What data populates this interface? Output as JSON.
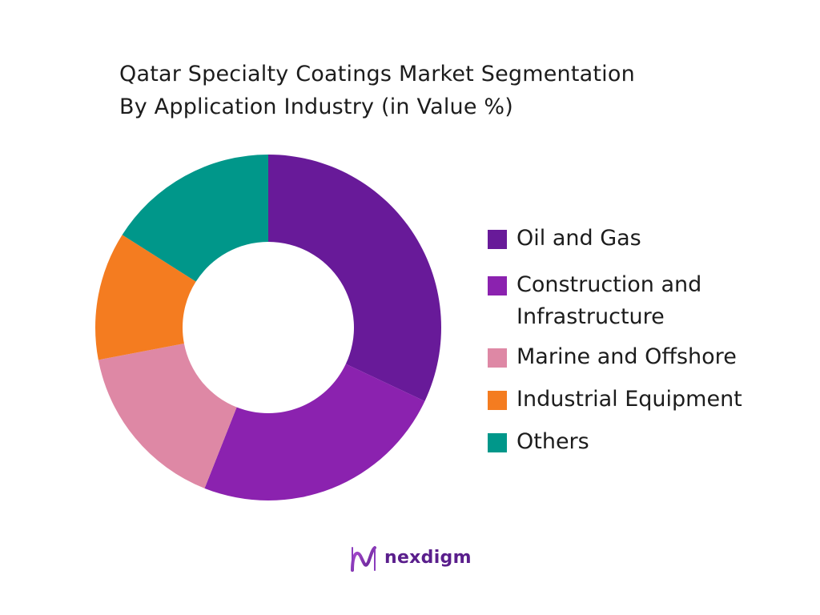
{
  "chart_data": {
    "type": "pie",
    "title": "Qatar Specialty Coatings Market Segmentation",
    "subtitle": "By Application Industry (in Value %)",
    "categories": [
      "Oil and Gas",
      "Construction and Infrastructure",
      "Marine and Offshore",
      "Industrial Equipment",
      "Others"
    ],
    "values": [
      32,
      24,
      16,
      12,
      16
    ],
    "colors": [
      "#681a99",
      "#8b22af",
      "#de88a5",
      "#f47c20",
      "#00978a"
    ],
    "legend_position": "right",
    "donut": true
  },
  "legend": {
    "items": [
      {
        "lines": [
          "Oil and Gas"
        ]
      },
      {
        "lines": [
          "Construction and",
          "Infrastructure"
        ]
      },
      {
        "lines": [
          "Marine and Offshore"
        ]
      },
      {
        "lines": [
          "Industrial Equipment"
        ]
      },
      {
        "lines": [
          "Others"
        ]
      }
    ]
  },
  "brand": {
    "name": "nexdigm",
    "icon": "nexdigm-logo-icon"
  }
}
